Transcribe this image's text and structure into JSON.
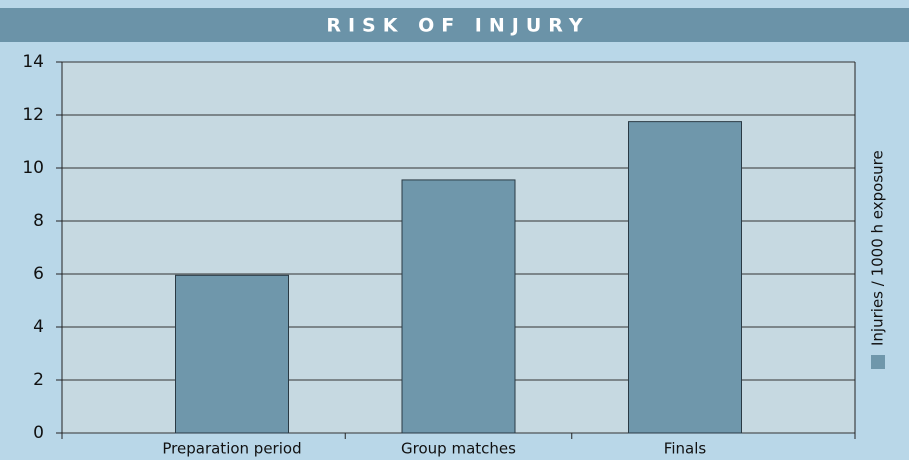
{
  "chart_data": {
    "type": "bar",
    "title": "RISK OF INJURY",
    "categories": [
      "Preparation period",
      "Group matches",
      "Finals"
    ],
    "series": [
      {
        "name": "Injuries / 1000 h exposure",
        "color": "#6f97ab",
        "values": [
          5.95,
          9.55,
          11.75
        ]
      }
    ],
    "ylim": [
      0,
      14
    ],
    "yticks": [
      0,
      2,
      4,
      6,
      8,
      10,
      12,
      14
    ],
    "grid": true
  }
}
